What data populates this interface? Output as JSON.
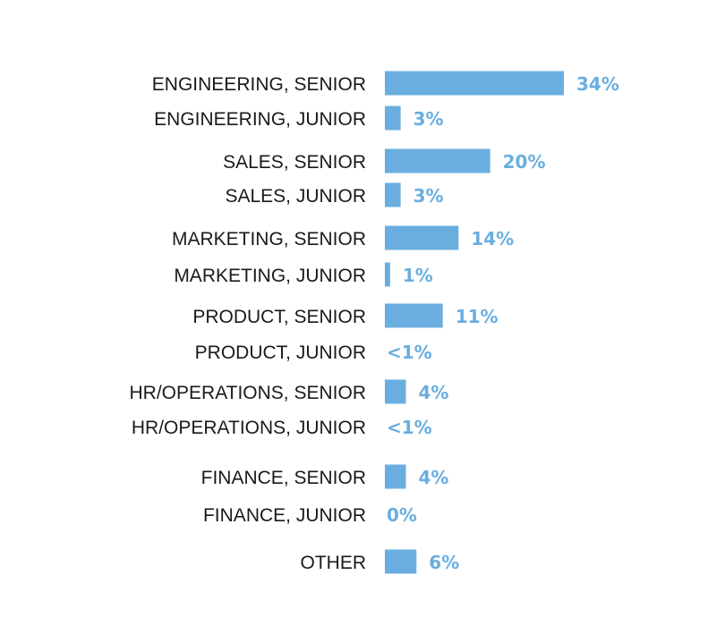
{
  "chart_data": {
    "type": "bar",
    "orientation": "horizontal",
    "title": "",
    "xlabel": "",
    "ylabel": "",
    "legend": "none",
    "grid": false,
    "xlim": [
      0,
      34
    ],
    "bar_color": "#6aaee0",
    "label_color": "#6aaee0",
    "categories": [
      "ENGINEERING, SENIOR",
      "ENGINEERING, JUNIOR",
      "SALES, SENIOR",
      "SALES, JUNIOR",
      "MARKETING, SENIOR",
      "MARKETING, JUNIOR",
      "PRODUCT, SENIOR",
      "PRODUCT, JUNIOR",
      "HR/OPERATIONS, SENIOR",
      "HR/OPERATIONS, JUNIOR",
      "FINANCE, SENIOR",
      "FINANCE, JUNIOR",
      "OTHER"
    ],
    "values": [
      34,
      3,
      20,
      3,
      14,
      1,
      11,
      0.3,
      4,
      0.3,
      4,
      0,
      6
    ],
    "value_labels": [
      "34%",
      "3%",
      "20%",
      "3%",
      "14%",
      "1%",
      "11%",
      "<1%",
      "4%",
      "<1%",
      "4%",
      "0%",
      "6%"
    ]
  }
}
